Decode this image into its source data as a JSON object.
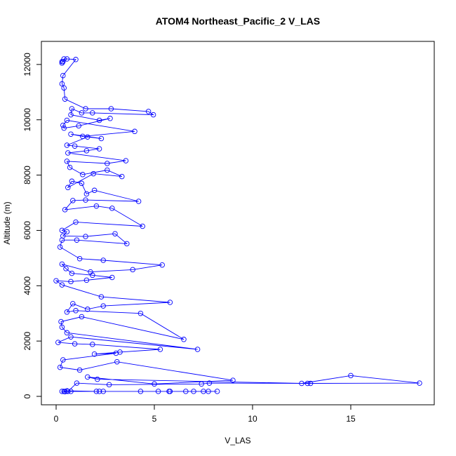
{
  "chart_data": {
    "type": "line",
    "title": "ATOM4 Northeast_Pacific_2 V_LAS",
    "xlabel": "V_LAS",
    "ylabel": "Altitude (m)",
    "xlim": [
      0,
      18.5
    ],
    "ylim": [
      0,
      12200
    ],
    "xticks": [
      0,
      5,
      10,
      15
    ],
    "yticks": [
      0,
      2000,
      4000,
      6000,
      8000,
      10000,
      12000
    ],
    "grid": false,
    "legend": "none",
    "series_color": "#0000ff",
    "marker": "open-circle",
    "series": [
      {
        "points": [
          [
            0.3,
            12050
          ],
          [
            0.3,
            12100
          ],
          [
            0.35,
            12100
          ],
          [
            0.4,
            12200
          ],
          [
            0.55,
            12200
          ],
          [
            1.0,
            12180
          ],
          [
            0.35,
            11600
          ],
          [
            0.3,
            11300
          ],
          [
            0.4,
            11150
          ],
          [
            0.45,
            10750
          ],
          [
            1.5,
            10400
          ],
          [
            2.8,
            10400
          ],
          [
            4.7,
            10300
          ],
          [
            4.95,
            10180
          ],
          [
            1.85,
            10250
          ],
          [
            1.3,
            10250
          ],
          [
            0.8,
            10400
          ],
          [
            0.75,
            10180
          ],
          [
            2.2,
            9980
          ],
          [
            2.75,
            10050
          ],
          [
            1.15,
            9780
          ],
          [
            0.4,
            9700
          ],
          [
            0.35,
            9800
          ],
          [
            0.55,
            9980
          ],
          [
            4.0,
            9580
          ],
          [
            1.35,
            9400
          ],
          [
            0.75,
            9480
          ],
          [
            2.3,
            9320
          ],
          [
            1.6,
            9380
          ],
          [
            0.55,
            9080
          ],
          [
            0.95,
            9050
          ],
          [
            2.2,
            8950
          ],
          [
            1.55,
            8880
          ],
          [
            0.6,
            8800
          ],
          [
            3.55,
            8520
          ],
          [
            2.6,
            8420
          ],
          [
            0.55,
            8500
          ],
          [
            0.7,
            8280
          ],
          [
            1.35,
            8020
          ],
          [
            2.6,
            8180
          ],
          [
            3.35,
            7950
          ],
          [
            1.9,
            8050
          ],
          [
            0.6,
            7550
          ],
          [
            0.8,
            7780
          ],
          [
            1.3,
            7700
          ],
          [
            1.55,
            7320
          ],
          [
            1.95,
            7450
          ],
          [
            4.2,
            7050
          ],
          [
            1.5,
            7100
          ],
          [
            0.85,
            7080
          ],
          [
            0.45,
            6750
          ],
          [
            2.05,
            6880
          ],
          [
            2.85,
            6800
          ],
          [
            4.4,
            6150
          ],
          [
            1.0,
            6300
          ],
          [
            0.3,
            6000
          ],
          [
            0.55,
            5950
          ],
          [
            0.35,
            5800
          ],
          [
            1.5,
            5780
          ],
          [
            3.0,
            5880
          ],
          [
            3.6,
            5520
          ],
          [
            1.05,
            5650
          ],
          [
            0.3,
            5650
          ],
          [
            0.2,
            5400
          ],
          [
            1.2,
            4980
          ],
          [
            2.4,
            4920
          ],
          [
            5.4,
            4750
          ],
          [
            3.9,
            4580
          ],
          [
            1.75,
            4500
          ],
          [
            0.3,
            4780
          ],
          [
            0.5,
            4620
          ],
          [
            0.8,
            4450
          ],
          [
            1.85,
            4380
          ],
          [
            2.85,
            4300
          ],
          [
            1.55,
            4200
          ],
          [
            0.75,
            4150
          ],
          [
            0.0,
            4180
          ],
          [
            0.3,
            4030
          ],
          [
            2.3,
            3600
          ],
          [
            5.8,
            3400
          ],
          [
            2.4,
            3270
          ],
          [
            1.6,
            3150
          ],
          [
            0.85,
            3350
          ],
          [
            0.55,
            3050
          ],
          [
            1.0,
            3100
          ],
          [
            4.3,
            3000
          ],
          [
            6.5,
            2060
          ],
          [
            1.3,
            2880
          ],
          [
            0.25,
            2700
          ],
          [
            0.3,
            2500
          ],
          [
            0.55,
            2300
          ],
          [
            7.2,
            1700
          ],
          [
            0.75,
            2150
          ],
          [
            0.1,
            1950
          ],
          [
            0.95,
            1900
          ],
          [
            1.85,
            1880
          ],
          [
            5.3,
            1700
          ],
          [
            3.25,
            1600
          ],
          [
            1.95,
            1530
          ],
          [
            3.05,
            1560
          ],
          [
            0.35,
            1320
          ],
          [
            0.2,
            1050
          ],
          [
            1.2,
            950
          ],
          [
            3.1,
            1250
          ],
          [
            9.0,
            580
          ],
          [
            5.0,
            450
          ],
          [
            1.6,
            700
          ],
          [
            2.1,
            620
          ],
          [
            12.5,
            470
          ],
          [
            15.0,
            750
          ],
          [
            18.5,
            480
          ],
          [
            12.8,
            470
          ],
          [
            12.95,
            470
          ],
          [
            7.8,
            480
          ],
          [
            7.4,
            450
          ],
          [
            2.7,
            420
          ],
          [
            1.05,
            480
          ],
          [
            0.6,
            180
          ],
          [
            0.75,
            180
          ],
          [
            0.4,
            180
          ],
          [
            0.55,
            200
          ],
          [
            2.05,
            180
          ],
          [
            2.4,
            180
          ],
          [
            4.3,
            180
          ],
          [
            5.75,
            180
          ],
          [
            7.75,
            180
          ],
          [
            8.2,
            180
          ],
          [
            7.5,
            180
          ],
          [
            7.0,
            180
          ],
          [
            6.6,
            180
          ],
          [
            5.8,
            180
          ],
          [
            5.2,
            180
          ],
          [
            2.2,
            180
          ],
          [
            0.3,
            180
          ],
          [
            0.45,
            170
          ]
        ]
      }
    ]
  }
}
